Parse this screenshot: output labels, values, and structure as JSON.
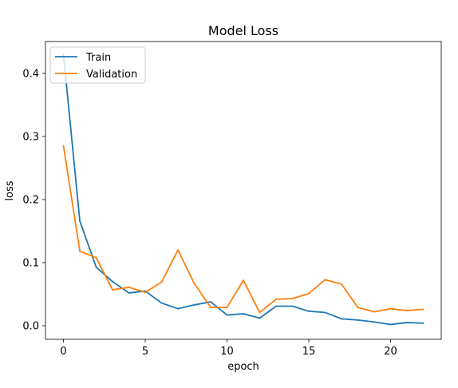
{
  "chart_data": {
    "type": "line",
    "title": "Model Loss",
    "xlabel": "epoch",
    "ylabel": "loss",
    "xlim": [
      -1.1,
      23.1
    ],
    "ylim": [
      -0.0215,
      0.4505
    ],
    "xticks": [
      0,
      5,
      10,
      15,
      20
    ],
    "yticks": [
      0.0,
      0.1,
      0.2,
      0.3,
      0.4
    ],
    "xtick_labels": [
      "0",
      "5",
      "10",
      "15",
      "20"
    ],
    "ytick_labels": [
      "0.0",
      "0.1",
      "0.2",
      "0.3",
      "0.4"
    ],
    "grid": false,
    "legend_position": "top-left",
    "x": [
      0,
      1,
      2,
      3,
      4,
      5,
      6,
      7,
      8,
      9,
      10,
      11,
      12,
      13,
      14,
      15,
      16,
      17,
      18,
      19,
      20,
      21,
      22
    ],
    "series": [
      {
        "name": "Train",
        "color": "#1f77b4",
        "values": [
          0.43,
          0.166,
          0.093,
          0.07,
          0.052,
          0.055,
          0.036,
          0.027,
          0.033,
          0.038,
          0.017,
          0.019,
          0.012,
          0.031,
          0.031,
          0.023,
          0.021,
          0.011,
          0.009,
          0.006,
          0.002,
          0.005,
          0.004
        ]
      },
      {
        "name": "Validation",
        "color": "#ff7f0e",
        "values": [
          0.285,
          0.118,
          0.108,
          0.057,
          0.061,
          0.053,
          0.069,
          0.12,
          0.067,
          0.029,
          0.029,
          0.072,
          0.021,
          0.042,
          0.043,
          0.051,
          0.073,
          0.066,
          0.029,
          0.022,
          0.027,
          0.024,
          0.026
        ]
      }
    ]
  }
}
